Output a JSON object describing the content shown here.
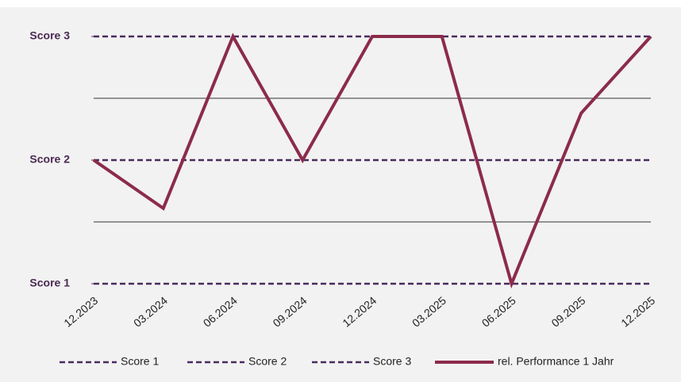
{
  "chart_data": {
    "type": "line",
    "categories": [
      "12.2023",
      "03.2024",
      "06.2024",
      "09.2024",
      "12.2024",
      "03.2025",
      "06.2025",
      "09.2025",
      "12.2025"
    ],
    "series": [
      {
        "name": "Score 1",
        "color": "#4a2a5e",
        "dashed": true,
        "values": [
          1,
          1,
          1,
          1,
          1,
          1,
          1,
          1,
          1
        ]
      },
      {
        "name": "Score 2",
        "color": "#4a2a5e",
        "dashed": true,
        "values": [
          2,
          2,
          2,
          2,
          2,
          2,
          2,
          2,
          2
        ]
      },
      {
        "name": "Score 3",
        "color": "#4a2a5e",
        "dashed": true,
        "values": [
          3,
          3,
          3,
          3,
          3,
          3,
          3,
          3,
          3
        ]
      },
      {
        "name": "rel. Performance 1 Jahr",
        "color": "#8c2b4b",
        "dashed": false,
        "values": [
          2,
          1.61,
          3,
          2,
          3,
          3,
          1,
          2.38,
          3
        ]
      }
    ],
    "ylim": [
      1,
      3
    ],
    "yticks": [
      {
        "value": 1,
        "label": "Score 1"
      },
      {
        "value": 2,
        "label": "Score 2"
      },
      {
        "value": 3,
        "label": "Score 3"
      }
    ],
    "gridlines": [
      1.5,
      2.5
    ],
    "legend": "bottom"
  }
}
